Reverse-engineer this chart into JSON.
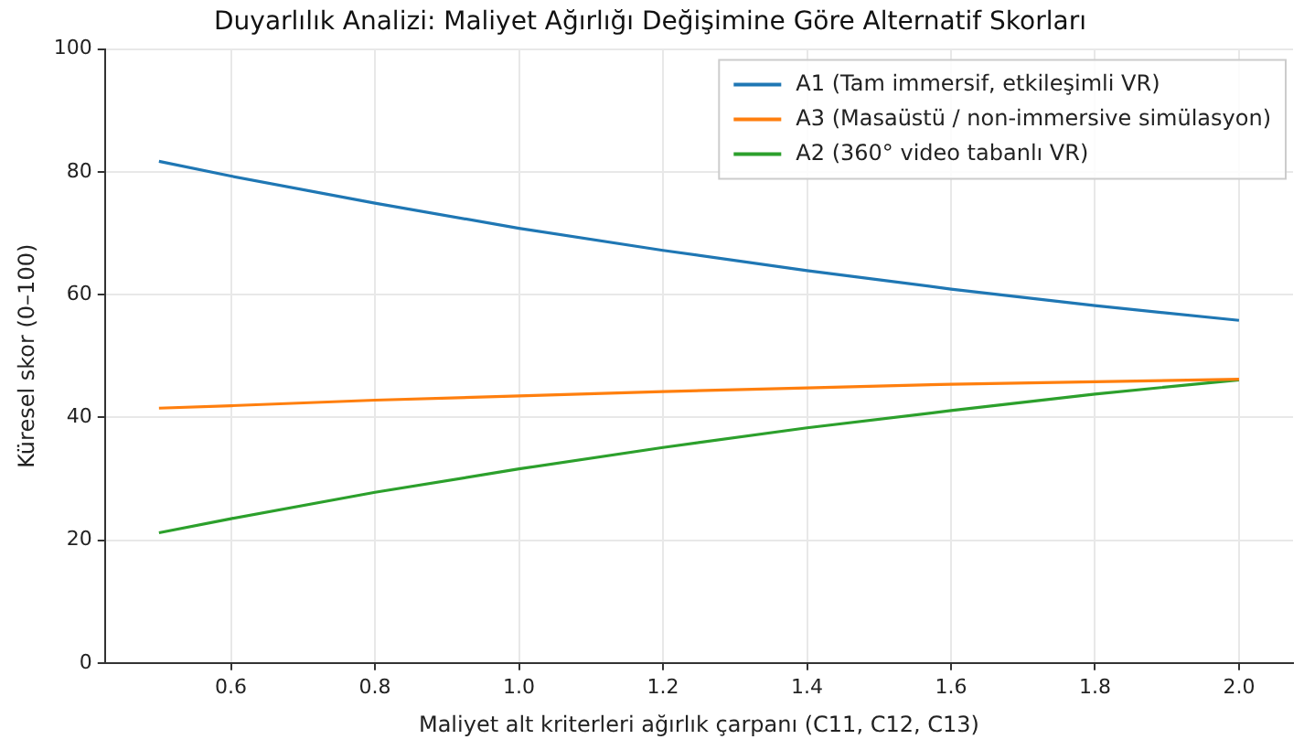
{
  "chart_data": {
    "type": "line",
    "title": "Duyarlılık Analizi: Maliyet Ağırlığı Değişimine Göre Alternatif Skorları",
    "xlabel": "Maliyet alt kriterleri ağırlık çarpanı (C11, C12, C13)",
    "ylabel": "Küresel skor (0–100)",
    "x": [
      0.5,
      0.6,
      0.8,
      1.0,
      1.2,
      1.4,
      1.6,
      1.8,
      2.0
    ],
    "series": [
      {
        "name": "A1 (Tam immersif, etkileşimli VR)",
        "color": "#1f77b4",
        "values": [
          81.7,
          79.3,
          74.9,
          70.8,
          67.2,
          63.9,
          60.9,
          58.2,
          55.8
        ]
      },
      {
        "name": "A3 (Masaüstü / non-immersive simülasyon)",
        "color": "#ff7f0e",
        "values": [
          41.5,
          41.9,
          42.8,
          43.5,
          44.2,
          44.8,
          45.4,
          45.8,
          46.2
        ]
      },
      {
        "name": "A2 (360° video tabanlı VR)",
        "color": "#2ca02c",
        "values": [
          21.2,
          23.5,
          27.8,
          31.6,
          35.1,
          38.3,
          41.1,
          43.8,
          46.1
        ]
      }
    ],
    "xlim": [
      0.425,
      2.075
    ],
    "xticks": [
      {
        "value": 0.6,
        "label": "0.6"
      },
      {
        "value": 0.8,
        "label": "0.8"
      },
      {
        "value": 1.0,
        "label": "1.0"
      },
      {
        "value": 1.2,
        "label": "1.2"
      },
      {
        "value": 1.4,
        "label": "1.4"
      },
      {
        "value": 1.6,
        "label": "1.6"
      },
      {
        "value": 1.8,
        "label": "1.8"
      },
      {
        "value": 2.0,
        "label": "2.0"
      }
    ],
    "ylim": [
      0,
      100
    ],
    "yticks": [
      0,
      20,
      40,
      60,
      80,
      100
    ],
    "grid": true,
    "legend": "top right",
    "marker": "none",
    "line_style": "solid"
  }
}
